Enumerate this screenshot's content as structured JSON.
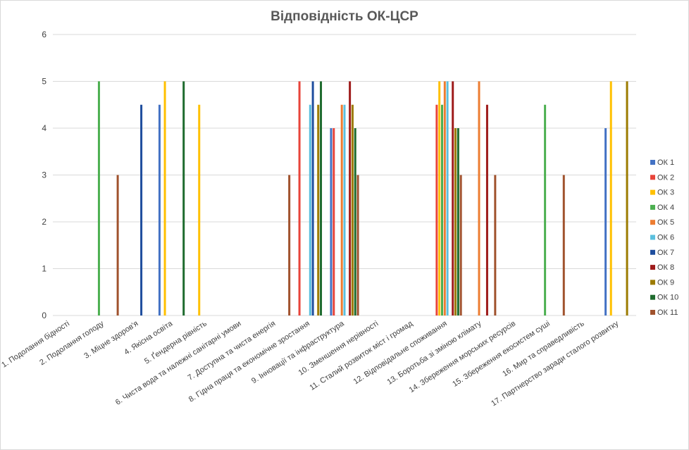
{
  "chart_data": {
    "type": "bar",
    "title": "Відповідність ОК-ЦСР",
    "xlabel": "",
    "ylabel": "",
    "ylim": [
      0,
      6
    ],
    "yticks": [
      0,
      1,
      2,
      3,
      4,
      5,
      6
    ],
    "grid": true,
    "legend_position": "right",
    "categories": [
      "1. Подолання бідності",
      "2. Подолання голоду",
      "3. Міцне здоров'я",
      "4. Якісна освіта",
      "5. Ґендерна рівність",
      "6. Чиста вода та належні санітарні умови",
      "7. Доступна та чиста енергія",
      "8. Гідна праця та економічне зростання",
      "9. Інновації та інфраструктура",
      "10. Зменшення нерівності",
      "11. Сталий розвиток міст і громад",
      "12. Відповідальне споживання",
      "13. Боротьба зі зміною клімату",
      "14. Збереження морських ресурсів",
      "15. Збереження екосистем суші",
      "16. Мир та справедливість",
      "17. Партнерство заради сталого розвитку"
    ],
    "series": [
      {
        "name": "ОК 1",
        "color": "#4472C4",
        "values": [
          0,
          0,
          0,
          4.5,
          0,
          0,
          0,
          0,
          4,
          0,
          0,
          0,
          0,
          0,
          0,
          0,
          4
        ]
      },
      {
        "name": "ОК 2",
        "color": "#E8443A",
        "values": [
          0,
          0,
          0,
          0,
          0,
          0,
          0,
          5,
          4,
          0,
          0,
          4.5,
          0,
          0,
          0,
          0,
          0
        ]
      },
      {
        "name": "ОК 3",
        "color": "#FFC000",
        "values": [
          0,
          0,
          0,
          5,
          4.5,
          0,
          0,
          0,
          0,
          0,
          0,
          5,
          0,
          0,
          0,
          0,
          5
        ]
      },
      {
        "name": "ОК 4",
        "color": "#4CAF50",
        "values": [
          0,
          5,
          0,
          0,
          0,
          0,
          0,
          0,
          0,
          0,
          0,
          4.5,
          0,
          0,
          4.5,
          0,
          0
        ]
      },
      {
        "name": "ОК 5",
        "color": "#ED7D31",
        "values": [
          0,
          0,
          0,
          0,
          0,
          0,
          0,
          0,
          4.5,
          0,
          0,
          5,
          5,
          0,
          0,
          0,
          0
        ]
      },
      {
        "name": "ОК 6",
        "color": "#5BC0DE",
        "values": [
          0,
          0,
          0,
          0,
          0,
          0,
          0,
          4.5,
          4.5,
          0,
          0,
          5,
          0,
          0,
          0,
          0,
          0
        ]
      },
      {
        "name": "ОК 7",
        "color": "#1F4E9E",
        "values": [
          0,
          0,
          4.5,
          0,
          0,
          0,
          0,
          5,
          0,
          0,
          0,
          0,
          0,
          0,
          0,
          0,
          0
        ]
      },
      {
        "name": "ОК 8",
        "color": "#9E1B1B",
        "values": [
          0,
          0,
          0,
          0,
          0,
          0,
          0,
          0,
          5,
          0,
          0,
          5,
          4.5,
          0,
          0,
          0,
          0
        ]
      },
      {
        "name": "ОК 9",
        "color": "#9C7B00",
        "values": [
          0,
          0,
          0,
          0,
          0,
          0,
          0,
          4.5,
          4.5,
          0,
          0,
          4,
          0,
          0,
          0,
          0,
          5
        ]
      },
      {
        "name": "ОК 10",
        "color": "#1E6B2E",
        "values": [
          0,
          0,
          0,
          5,
          0,
          0,
          0,
          5,
          4,
          0,
          0,
          4,
          0,
          0,
          0,
          0,
          0
        ]
      },
      {
        "name": "ОК 11",
        "color": "#A0522D",
        "values": [
          0,
          3,
          0,
          0,
          0,
          0,
          3,
          0,
          3,
          0,
          0,
          3,
          3,
          0,
          3,
          0,
          0
        ]
      }
    ]
  }
}
